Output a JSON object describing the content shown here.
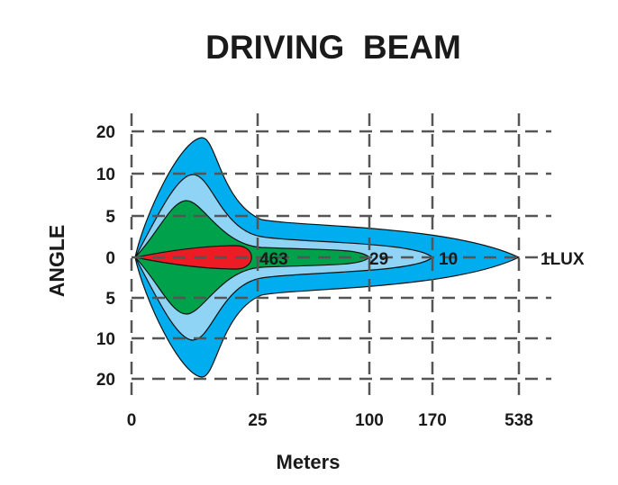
{
  "chart_data": {
    "type": "area",
    "title": "DRIVING  BEAM",
    "xlabel": "Meters",
    "ylabel": "ANGLE",
    "x_ticks": [
      {
        "label": "0",
        "value": 0
      },
      {
        "label": "25",
        "value": 25
      },
      {
        "label": "100",
        "value": 100
      },
      {
        "label": "170",
        "value": 170
      },
      {
        "label": "538",
        "value": 538
      }
    ],
    "y_ticks": [
      {
        "label": "20",
        "value": 20
      },
      {
        "label": "10",
        "value": 10
      },
      {
        "label": "5",
        "value": 5
      },
      {
        "label": "0",
        "value": 0
      },
      {
        "label": "5",
        "value": -5
      },
      {
        "label": "10",
        "value": -10
      },
      {
        "label": "20",
        "value": -20
      }
    ],
    "grid": true,
    "series": [
      {
        "name": "1 lux",
        "label": "1LUX",
        "lux": 1,
        "reach_m": 538,
        "max_angle_deg": 20,
        "color": "#00aeef"
      },
      {
        "name": "10 lux",
        "label": "10",
        "lux": 10,
        "reach_m": 170,
        "max_angle_deg": 10,
        "color": "#8fd3f5"
      },
      {
        "name": "29 lux",
        "label": "29",
        "lux": 29,
        "reach_m": 100,
        "max_angle_deg": 7,
        "color": "#00a14b"
      },
      {
        "name": "463 lux",
        "label": "463",
        "lux": 463,
        "reach_m": 25,
        "max_angle_deg": 1,
        "color": "#ed1c24"
      }
    ]
  }
}
